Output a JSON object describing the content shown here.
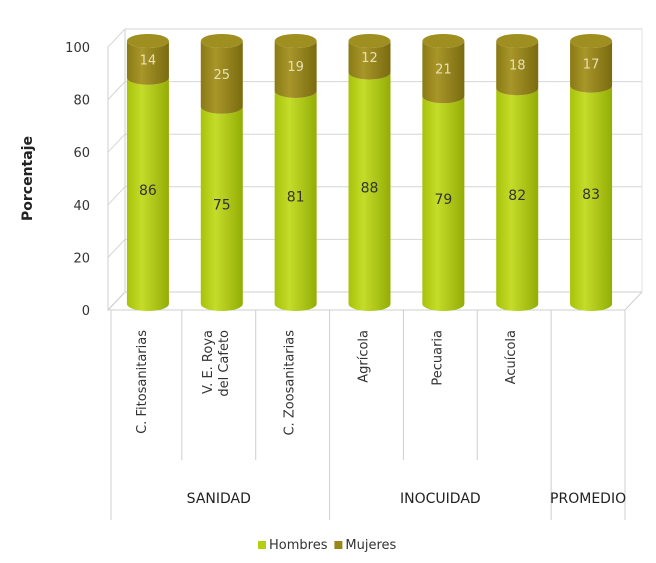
{
  "chart_data": {
    "type": "bar",
    "stacked": true,
    "three_d": true,
    "ylabel": "Porcentaje",
    "ylim": [
      0,
      100
    ],
    "yticks": [
      0,
      20,
      40,
      60,
      80,
      100
    ],
    "grid": true,
    "legend_position": "bottom",
    "categories": [
      [
        "C. Fitosanitarias"
      ],
      [
        "V. E. Roya",
        "del Cafeto"
      ],
      [
        "C. Zoosanitarias"
      ],
      [
        "Agrícola"
      ],
      [
        "Pecuaria"
      ],
      [
        "Acuícola"
      ],
      [
        ""
      ]
    ],
    "groups": [
      {
        "label": "SANIDAD",
        "span": [
          0,
          2
        ]
      },
      {
        "label": "INOCUIDAD",
        "span": [
          3,
          5
        ]
      },
      {
        "label": "PROMEDIO",
        "span": [
          6,
          6
        ]
      }
    ],
    "series": [
      {
        "name": "Hombres",
        "color": "#b5cf10",
        "values": [
          86,
          75,
          81,
          88,
          79,
          82,
          83
        ]
      },
      {
        "name": "Mujeres",
        "color": "#98871a",
        "values": [
          14,
          25,
          19,
          12,
          21,
          18,
          17
        ]
      }
    ]
  }
}
